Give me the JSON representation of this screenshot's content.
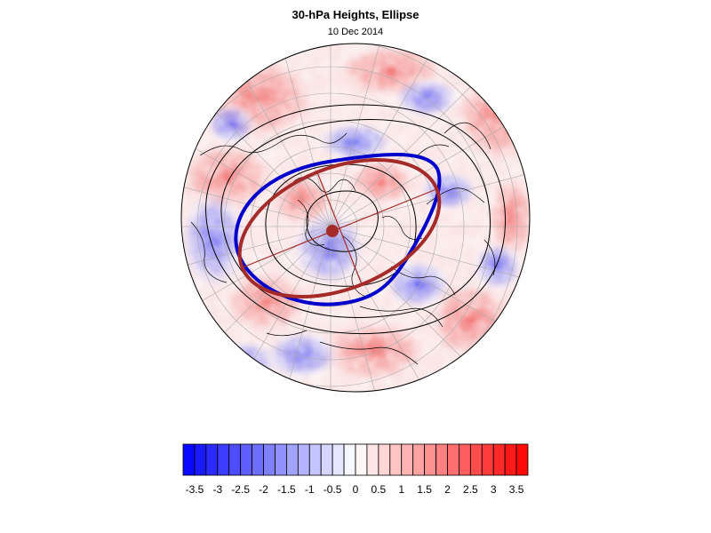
{
  "title": "30-hPa Heights, Ellipse",
  "subtitle": "10 Dec 2014",
  "colors": {
    "negative_max": "#0000ff",
    "positive_max": "#ff0000",
    "neutral": "#ffffff",
    "ellipse_fitted": "#a52a2a",
    "ellipse_contour": "#0000cc",
    "coastline": "#000000",
    "graticule": "#aaaaaa"
  },
  "map": {
    "projection": "polar stereographic",
    "hemisphere": "north",
    "graticule": true,
    "coastlines": true,
    "shaded_field": "anomaly"
  },
  "colorbar": {
    "min": -3.75,
    "max": 3.75,
    "step": 0.25,
    "tick_labels": [
      "-3.5",
      "-3",
      "-2.5",
      "-2",
      "-1.5",
      "-1",
      "-0.5",
      "0",
      "0.5",
      "1",
      "1.5",
      "2",
      "2.5",
      "3",
      "3.5"
    ],
    "tick_values": [
      -3.5,
      -3,
      -2.5,
      -2,
      -1.5,
      -1,
      -0.5,
      0,
      0.5,
      1,
      1.5,
      2,
      2.5,
      3,
      3.5
    ]
  }
}
